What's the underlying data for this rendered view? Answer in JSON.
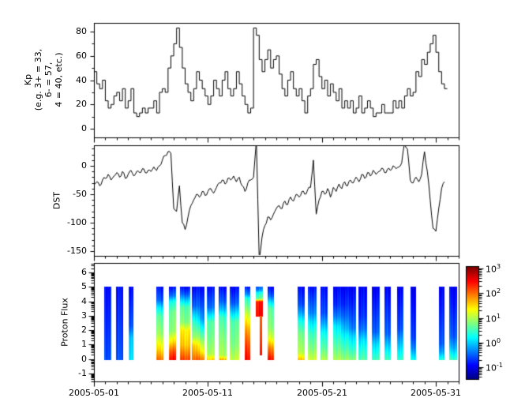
{
  "figure": {
    "background": "#ffffff",
    "axis_color": "#000000",
    "line_color": "#000000"
  },
  "x_axis": {
    "major_tick_labels": [
      "2005-05-01",
      "2005-05-11",
      "2005-05-21",
      "2005-05-31"
    ],
    "major_tick_days": [
      0,
      10,
      20,
      30
    ],
    "minor_tick_every_days": 1,
    "span_days": 32
  },
  "chart_data": [
    {
      "type": "line",
      "name": "kp_index",
      "line_style": "steps-post",
      "color": "#000000",
      "ylabel": "Kp\n(e.g. 3+ = 33,\n6- = 57,\n4 = 40, etc.)",
      "ylim": [
        -7.15,
        87.2
      ],
      "yticks": [
        0,
        20,
        40,
        60,
        80
      ],
      "ytick_labels": [
        "0",
        "20",
        "40",
        "60",
        "80"
      ],
      "y_minor_step": 10,
      "x_unit": "days since 2005-05-01",
      "samples_per_day": 4,
      "values": [
        47,
        37,
        33,
        40,
        23,
        17,
        20,
        27,
        30,
        23,
        33,
        17,
        23,
        33,
        13,
        10,
        13,
        17,
        13,
        17,
        17,
        23,
        13,
        30,
        33,
        30,
        50,
        60,
        70,
        83,
        67,
        50,
        37,
        30,
        23,
        33,
        47,
        40,
        33,
        27,
        20,
        27,
        40,
        33,
        27,
        40,
        47,
        33,
        27,
        33,
        47,
        37,
        27,
        20,
        13,
        17,
        83,
        77,
        57,
        47,
        57,
        65,
        50,
        57,
        60,
        45,
        33,
        27,
        40,
        47,
        33,
        27,
        33,
        23,
        13,
        27,
        33,
        53,
        57,
        43,
        33,
        40,
        27,
        37,
        30,
        23,
        33,
        17,
        23,
        17,
        23,
        13,
        17,
        27,
        13,
        17,
        23,
        17,
        10,
        13,
        13,
        20,
        13,
        13,
        13,
        23,
        17,
        23,
        17,
        27,
        33,
        27,
        30,
        47,
        43,
        57,
        53,
        63,
        70,
        77,
        63,
        47,
        37,
        33
      ]
    },
    {
      "type": "line",
      "name": "dst_index",
      "color": "#000000",
      "ylabel": "DST",
      "ylim": [
        -158.3,
        36.1
      ],
      "yticks": [
        0,
        -50,
        -100,
        -150
      ],
      "ytick_labels": [
        "0",
        "-50",
        "-100",
        "-150"
      ],
      "y_minor_step": 10,
      "x_unit": "days since 2005-05-01",
      "samples_per_day": 4,
      "values": [
        -32,
        -28,
        -35,
        -25,
        -22,
        -15,
        -25,
        -18,
        -12,
        -20,
        -10,
        -22,
        -15,
        -8,
        -18,
        -10,
        -12,
        -5,
        -12,
        -8,
        -10,
        -2,
        -8,
        0,
        10,
        18,
        25,
        22,
        -75,
        -80,
        -35,
        -100,
        -112,
        -90,
        -70,
        -60,
        -50,
        -55,
        -45,
        -52,
        -45,
        -40,
        -48,
        -38,
        -30,
        -25,
        -32,
        -22,
        -25,
        -18,
        -28,
        -20,
        -35,
        -45,
        -30,
        -25,
        -20,
        45,
        -165,
        -125,
        -105,
        -90,
        -95,
        -85,
        -75,
        -70,
        -75,
        -62,
        -68,
        -55,
        -62,
        -50,
        -55,
        -45,
        -50,
        -42,
        -38,
        10,
        -85,
        -60,
        -45,
        -50,
        -40,
        -55,
        -38,
        -45,
        -32,
        -40,
        -28,
        -35,
        -25,
        -30,
        -20,
        -28,
        -15,
        -22,
        -12,
        -18,
        -8,
        -15,
        -10,
        -4,
        -12,
        -6,
        -8,
        0,
        -5,
        -2,
        5,
        40,
        30,
        -25,
        -30,
        -20,
        -28,
        -15,
        25,
        -10,
        -60,
        -110,
        -115,
        -75,
        -40,
        -28
      ]
    },
    {
      "type": "heatmap",
      "name": "proton_flux",
      "ylabel": "Proton Flux",
      "ylim": [
        -1.55,
        6.66
      ],
      "yticks": [
        6,
        5,
        4,
        3,
        2,
        1,
        0,
        -1
      ],
      "ytick_labels": [
        "6",
        "5",
        "4",
        "3",
        "2",
        "1",
        "0",
        "-1"
      ],
      "colormap": "jet",
      "scale": {
        "log": true,
        "lmin": -1.48,
        "lmax": 3.06
      },
      "colorbar": {
        "base": "10",
        "tick_exponents": [
          "3",
          "2",
          "1",
          "0",
          "-1"
        ]
      },
      "stripes": [
        {
          "d0": 0.9,
          "d1": 1.45,
          "p": [
            [
              0,
              -0.55
            ],
            [
              5,
              -0.85
            ]
          ]
        },
        {
          "d0": 1.95,
          "d1": 2.5,
          "p": [
            [
              0,
              -0.55
            ],
            [
              5,
              -0.85
            ]
          ]
        },
        {
          "d0": 3.05,
          "d1": 3.4,
          "p": [
            [
              0,
              0.15
            ],
            [
              1.5,
              0.0
            ],
            [
              2.3,
              -0.5
            ],
            [
              5,
              -0.85
            ]
          ]
        },
        {
          "d0": 5.45,
          "d1": 6.0,
          "p": [
            [
              0,
              2.0
            ],
            [
              0.7,
              1.5
            ],
            [
              1.8,
              0.9
            ],
            [
              3,
              0.6
            ],
            [
              3.6,
              0.1
            ],
            [
              4.1,
              -0.5
            ],
            [
              5,
              -0.85
            ]
          ]
        },
        {
          "d0": 6.55,
          "d1": 7.1,
          "p": [
            [
              0,
              2.5
            ],
            [
              0.6,
              2.1
            ],
            [
              1.2,
              1.5
            ],
            [
              2,
              0.85
            ],
            [
              3.3,
              0.7
            ],
            [
              4,
              0.3
            ],
            [
              4.4,
              -0.4
            ],
            [
              5,
              -0.85
            ]
          ]
        },
        {
          "d0": 7.55,
          "d1": 8.35,
          "p": [
            [
              0,
              2.2
            ],
            [
              1,
              1.6
            ],
            [
              2,
              1.4
            ],
            [
              2.6,
              0.8
            ],
            [
              3.6,
              0.6
            ],
            [
              4.1,
              0.0
            ],
            [
              4.5,
              -0.5
            ],
            [
              5,
              -0.9
            ]
          ]
        },
        {
          "d0": 8.6,
          "d1": 9.65,
          "p": [
            [
              0,
              2.1
            ],
            [
              1,
              1.7
            ],
            [
              1.6,
              1.0
            ],
            [
              2.6,
              0.6
            ],
            [
              3.2,
              0.1
            ],
            [
              3.7,
              -0.4
            ],
            [
              5,
              -0.85
            ]
          ],
          "pr": [
            [
              0,
              2.0
            ],
            [
              0.6,
              1.3
            ],
            [
              1.6,
              0.65
            ],
            [
              2.2,
              0.2
            ],
            [
              2.8,
              -0.3
            ],
            [
              5,
              -0.9
            ]
          ]
        },
        {
          "d0": 9.9,
          "d1": 10.55,
          "p": [
            [
              0,
              1.55
            ],
            [
              0.4,
              1.0
            ],
            [
              1.5,
              0.75
            ],
            [
              2.6,
              0.6
            ],
            [
              3.1,
              0.1
            ],
            [
              3.6,
              -0.4
            ],
            [
              5,
              -0.85
            ]
          ]
        },
        {
          "d0": 10.95,
          "d1": 11.55,
          "p": [
            [
              0,
              1.7
            ],
            [
              0.3,
              1.0
            ],
            [
              2,
              0.7
            ],
            [
              2.9,
              0.5
            ],
            [
              3.5,
              -0.1
            ],
            [
              4,
              -0.5
            ],
            [
              5,
              -0.9
            ]
          ]
        },
        {
          "d0": 11.9,
          "d1": 12.65,
          "p": [
            [
              0,
              1.1
            ],
            [
              1,
              0.8
            ],
            [
              2.6,
              0.6
            ],
            [
              3.3,
              0.0
            ],
            [
              3.9,
              -0.5
            ],
            [
              5,
              -0.9
            ]
          ]
        },
        {
          "d0": 13.2,
          "d1": 13.65,
          "p": [
            [
              0,
              2.5
            ],
            [
              1,
              2.2
            ],
            [
              2,
              1.8
            ],
            [
              2.7,
              1.4
            ],
            [
              3.3,
              1.0
            ],
            [
              3.7,
              0.7
            ],
            [
              4.2,
              0.4
            ],
            [
              4.5,
              -0.3
            ],
            [
              5,
              -0.8
            ]
          ]
        },
        {
          "d0": 14.2,
          "d1": 14.75,
          "y0": 3,
          "y1": 5,
          "p": [
            [
              3,
              2.5
            ],
            [
              4.0,
              2.4
            ],
            [
              4.2,
              0.7
            ],
            [
              4.6,
              0.3
            ],
            [
              4.8,
              -0.3
            ],
            [
              5,
              -0.5
            ]
          ]
        },
        {
          "d0": 14.55,
          "d1": 14.7,
          "y0": 0.3,
          "y1": 3,
          "p": [
            [
              0.3,
              2.4
            ],
            [
              1.5,
              2.2
            ],
            [
              3,
              2.05
            ]
          ]
        },
        {
          "d0": 15.25,
          "d1": 15.7,
          "p": [
            [
              0,
              2.45
            ],
            [
              0.8,
              1.9
            ],
            [
              1.5,
              1.2
            ],
            [
              2.2,
              0.85
            ],
            [
              3.5,
              0.65
            ],
            [
              4,
              0.05
            ],
            [
              4.4,
              -0.5
            ],
            [
              5,
              -0.9
            ]
          ]
        },
        {
          "d0": 17.9,
          "d1": 18.4,
          "p": [
            [
              0,
              1.6
            ],
            [
              0.5,
              1.0
            ],
            [
              1.8,
              0.7
            ],
            [
              2.6,
              0.3
            ],
            [
              3.2,
              -0.2
            ],
            [
              3.8,
              -0.6
            ],
            [
              5,
              -0.9
            ]
          ]
        },
        {
          "d0": 18.75,
          "d1": 19.45,
          "p": [
            [
              0,
              1.15
            ],
            [
              0.8,
              0.8
            ],
            [
              1.8,
              0.5
            ],
            [
              2.6,
              0.1
            ],
            [
              3.2,
              -0.3
            ],
            [
              5,
              -0.85
            ]
          ]
        },
        {
          "d0": 19.9,
          "d1": 20.45,
          "p": [
            [
              0,
              1.0
            ],
            [
              0.8,
              0.6
            ],
            [
              1.8,
              0.25
            ],
            [
              2.5,
              -0.2
            ],
            [
              3.2,
              -0.6
            ],
            [
              5,
              -0.9
            ]
          ]
        },
        {
          "d0": 21.0,
          "d1": 22.9,
          "p": [
            [
              0,
              1.05
            ],
            [
              0.9,
              0.7
            ],
            [
              2.3,
              0.25
            ],
            [
              3,
              -0.3
            ],
            [
              3.8,
              -0.7
            ],
            [
              5,
              -0.9
            ]
          ],
          "pr": [
            [
              0,
              0.8
            ],
            [
              0.7,
              0.4
            ],
            [
              1.6,
              0.0
            ],
            [
              2.2,
              -0.45
            ],
            [
              5,
              -0.95
            ]
          ]
        },
        {
          "d0": 23.2,
          "d1": 23.9,
          "p": [
            [
              0,
              0.6
            ],
            [
              1.3,
              0.1
            ],
            [
              2.1,
              -0.4
            ],
            [
              3,
              -0.7
            ],
            [
              5,
              -0.95
            ]
          ]
        },
        {
          "d0": 24.4,
          "d1": 25.0,
          "p": [
            [
              0,
              0.55
            ],
            [
              1.1,
              0.05
            ],
            [
              1.9,
              -0.45
            ],
            [
              5,
              -0.95
            ]
          ]
        },
        {
          "d0": 25.5,
          "d1": 26.0,
          "p": [
            [
              0,
              0.5
            ],
            [
              1,
              -0.05
            ],
            [
              1.8,
              -0.5
            ],
            [
              5,
              -0.95
            ]
          ]
        },
        {
          "d0": 26.6,
          "d1": 27.05,
          "p": [
            [
              0,
              0.45
            ],
            [
              1.4,
              -0.2
            ],
            [
              2.1,
              -0.55
            ],
            [
              5,
              -0.95
            ]
          ]
        },
        {
          "d0": 27.8,
          "d1": 28.2,
          "p": [
            [
              0,
              0.3
            ],
            [
              0.8,
              -0.3
            ],
            [
              1.5,
              -0.6
            ],
            [
              5,
              -1.0
            ]
          ]
        },
        {
          "d0": 30.3,
          "d1": 30.7,
          "p": [
            [
              0,
              0.35
            ],
            [
              0.5,
              -0.2
            ],
            [
              1.1,
              -0.55
            ],
            [
              5,
              -1.0
            ]
          ]
        },
        {
          "d0": 31.15,
          "d1": 31.8,
          "p": [
            [
              0,
              0.5
            ],
            [
              0.8,
              -0.1
            ],
            [
              1.6,
              -0.5
            ],
            [
              5,
              -0.95
            ]
          ]
        }
      ]
    }
  ]
}
